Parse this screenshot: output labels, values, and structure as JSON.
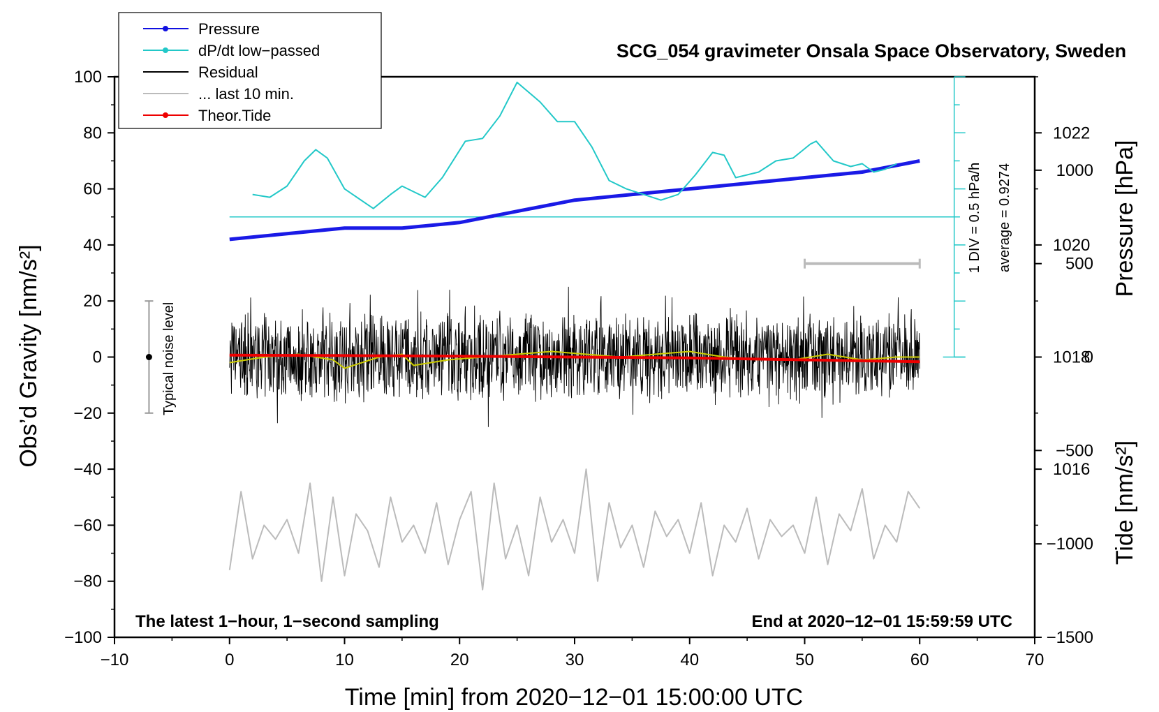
{
  "chart_data": {
    "type": "line",
    "title": "SCG_054 gravimeter Onsala Space Observatory, Sweden",
    "xlabel": "Time [min] from 2020−12−01 15:00:00 UTC",
    "ylabel_left": "Obs’d Gravity [nm/s²]",
    "ylabel_right_upper": "Pressure [hPa]",
    "ylabel_right_lower": "Tide [nm/s²]",
    "xlim": [
      -10,
      70
    ],
    "ylim": [
      -100,
      100
    ],
    "pressure_ylim": [
      1013,
      1023
    ],
    "tide_ylim": [
      -1500,
      1500
    ],
    "x_ticks": [
      "−10",
      "0",
      "10",
      "20",
      "30",
      "40",
      "50",
      "60",
      "70"
    ],
    "y_ticks": [
      "100",
      "80",
      "60",
      "40",
      "20",
      "0",
      "−20",
      "−40",
      "−60",
      "−80",
      "−100"
    ],
    "pressure_ticks": [
      "1022",
      "1020",
      "1018",
      "1016"
    ],
    "tide_ticks": [
      "1000",
      "500",
      "0",
      "−500",
      "−1000",
      "−1500"
    ],
    "footer_left": "The latest 1−hour, 1−second sampling",
    "footer_right": "End at 2020−12−01 15:59:59 UTC",
    "noise_label": "Typical noise level",
    "noise_range": [
      -20,
      20
    ],
    "dpdt_scale_label": "1 DIV = 0.5 hPa/h",
    "dpdt_average_label": "average = 0.9274",
    "dpdt_zero_line_y": 50,
    "legend": [
      {
        "label": "Pressure",
        "color": "#1010e0",
        "marker": true
      },
      {
        "label": "dP/dt low−passed",
        "color": "#22c8c8",
        "marker": true
      },
      {
        "label": "Residual",
        "color": "#000000",
        "marker": false
      },
      {
        "label": "... last 10 min.",
        "color": "#bbbbbb",
        "marker": false
      },
      {
        "label": "Theor.Tide",
        "color": "#ee0000",
        "marker": true
      }
    ],
    "series": [
      {
        "name": "Pressure",
        "axis": "pressure",
        "color": "#1a1ae6",
        "x": [
          0,
          5,
          10,
          15,
          20,
          25,
          30,
          35,
          40,
          45,
          50,
          55,
          60
        ],
        "y": [
          1020.1,
          1020.2,
          1020.3,
          1020.3,
          1020.4,
          1020.6,
          1020.8,
          1020.9,
          1021.0,
          1021.1,
          1021.2,
          1021.3,
          1021.5
        ]
      },
      {
        "name": "dP/dt low−passed",
        "axis": "gravity",
        "color": "#22c8c8",
        "x": [
          2,
          3.5,
          5,
          6.5,
          7.5,
          8.5,
          10,
          12.5,
          14,
          15,
          17,
          18.5,
          20.5,
          22,
          23.5,
          25,
          27,
          28.5,
          30,
          31.5,
          33,
          34.5,
          36,
          37.5,
          39,
          40.5,
          42,
          43,
          44,
          46,
          47.5,
          49,
          50.5,
          51,
          52.5,
          54,
          55,
          56,
          57,
          58
        ],
        "y": [
          58,
          57,
          61,
          70,
          74,
          71,
          60,
          53,
          58,
          61,
          57,
          64,
          77,
          78,
          86,
          98,
          91,
          84,
          84,
          75,
          63,
          60,
          58,
          56,
          58,
          65,
          73,
          72,
          64,
          66,
          70,
          71,
          76,
          77,
          70,
          68,
          69,
          66,
          67,
          69
        ]
      },
      {
        "name": "Residual",
        "axis": "gravity",
        "color": "#000000",
        "x": [
          0,
          5,
          10,
          15,
          20,
          25,
          30,
          35,
          40,
          45,
          50,
          55,
          60
        ],
        "y": [
          0,
          0,
          0,
          0,
          0,
          0,
          0,
          0,
          0,
          0,
          0,
          0,
          0
        ]
      },
      {
        "name": "Residual (smoothed)",
        "axis": "gravity",
        "color": "#cccc00",
        "x": [
          0,
          3,
          6,
          9,
          10,
          13,
          15,
          16,
          19,
          22,
          25,
          28,
          31,
          34,
          37,
          40,
          43,
          46,
          49,
          52,
          55,
          58,
          60
        ],
        "y": [
          -2,
          0,
          1,
          -1,
          -4,
          0,
          1,
          -3,
          -1,
          0,
          1,
          2,
          1,
          0,
          1,
          2,
          0,
          -1,
          -1,
          1,
          -1,
          0,
          0
        ]
      },
      {
        "name": "... last 10 min.",
        "axis": "gravity",
        "color": "#bbbbbb",
        "x": [
          0,
          1,
          2,
          3,
          4,
          5,
          6,
          7,
          8,
          9,
          10,
          11,
          12,
          13,
          14,
          15,
          16,
          17,
          18,
          19,
          20,
          21,
          22,
          23,
          24,
          25,
          26,
          27,
          28,
          29,
          30,
          31,
          32,
          33,
          34,
          35,
          36,
          37,
          38,
          39,
          40,
          41,
          42,
          43,
          44,
          45,
          46,
          47,
          48,
          49,
          50,
          51,
          52,
          53,
          54,
          55,
          56,
          57,
          58,
          59,
          60
        ],
        "y": [
          -76,
          -48,
          -72,
          -60,
          -65,
          -58,
          -70,
          -45,
          -80,
          -50,
          -78,
          -56,
          -62,
          -75,
          -50,
          -66,
          -60,
          -70,
          -52,
          -74,
          -58,
          -48,
          -83,
          -45,
          -72,
          -60,
          -78,
          -50,
          -66,
          -58,
          -70,
          -40,
          -80,
          -52,
          -68,
          -60,
          -75,
          -55,
          -64,
          -58,
          -70,
          -52,
          -78,
          -60,
          -66,
          -54,
          -72,
          -58,
          -64,
          -60,
          -70,
          -50,
          -74,
          -56,
          -62,
          -47,
          -72,
          -60,
          -66,
          -48,
          -54
        ]
      },
      {
        "name": "Theor.Tide",
        "axis": "tide",
        "color": "#ee0000",
        "x": [
          0,
          10,
          20,
          30,
          40,
          50,
          60
        ],
        "y": [
          10,
          8,
          5,
          0,
          -5,
          -15,
          -25
        ]
      }
    ],
    "last10_bar": [
      50,
      60
    ]
  }
}
